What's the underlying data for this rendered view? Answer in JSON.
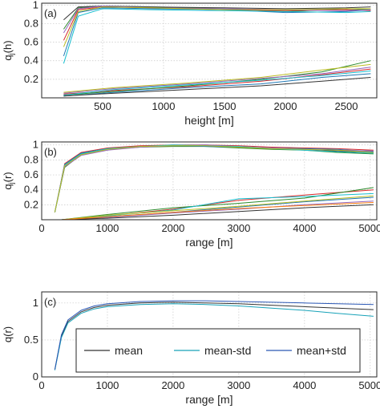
{
  "chart_data": [
    {
      "panel": "(a)",
      "type": "line",
      "xlabel": "height [m]",
      "ylabel": "q_j(h)",
      "xlim": [
        0,
        2750
      ],
      "ylim": [
        0,
        1.02
      ],
      "grid": true,
      "x_ticks": [
        "500",
        "1000",
        "1500",
        "2000",
        "2500"
      ],
      "y_ticks": [
        "0.2",
        "0.4",
        "0.6",
        "0.8",
        "1"
      ],
      "series": [
        {
          "color": "#2b8a2b",
          "x": [
            180,
            300,
            500,
            900,
            1500,
            2000,
            2500,
            2700
          ],
          "y": [
            0.74,
            0.97,
            0.99,
            0.98,
            0.96,
            0.93,
            0.96,
            0.95
          ]
        },
        {
          "color": "#d62728",
          "x": [
            180,
            300,
            500,
            900,
            1500,
            2000,
            2500,
            2700
          ],
          "y": [
            0.62,
            0.95,
            0.98,
            0.97,
            0.95,
            0.94,
            0.95,
            0.94
          ]
        },
        {
          "color": "#1f77b4",
          "x": [
            180,
            300,
            500,
            900,
            1500,
            2000,
            2500,
            2700
          ],
          "y": [
            0.45,
            0.92,
            0.97,
            0.96,
            0.95,
            0.92,
            0.93,
            0.95
          ]
        },
        {
          "color": "#17becf",
          "x": [
            180,
            300,
            500,
            900,
            1500,
            2000,
            2500,
            2700
          ],
          "y": [
            0.37,
            0.88,
            0.96,
            0.95,
            0.94,
            0.93,
            0.92,
            0.93
          ]
        },
        {
          "color": "#333333",
          "x": [
            180,
            300,
            500,
            900,
            1500,
            2000,
            2500,
            2700
          ],
          "y": [
            0.84,
            0.98,
            0.99,
            0.98,
            0.97,
            0.96,
            0.97,
            0.98
          ]
        },
        {
          "color": "#9467bd",
          "x": [
            180,
            300,
            500,
            900,
            1500,
            2000,
            2500,
            2700
          ],
          "y": [
            0.7,
            0.96,
            0.99,
            0.97,
            0.96,
            0.95,
            0.94,
            0.95
          ]
        },
        {
          "color": "#bcbd22",
          "x": [
            180,
            300,
            500,
            900,
            1500,
            2000,
            2500,
            2700
          ],
          "y": [
            0.55,
            0.93,
            0.98,
            0.97,
            0.95,
            0.95,
            0.96,
            0.96
          ]
        },
        {
          "color": "#1f77b4",
          "x": [
            180,
            600,
            1200,
            1800,
            2300,
            2700
          ],
          "y": [
            0.02,
            0.06,
            0.11,
            0.15,
            0.22,
            0.26
          ]
        },
        {
          "color": "#d62728",
          "x": [
            180,
            600,
            1200,
            1800,
            2300,
            2700
          ],
          "y": [
            0.04,
            0.08,
            0.12,
            0.18,
            0.25,
            0.31
          ]
        },
        {
          "color": "#2b8a2b",
          "x": [
            180,
            600,
            1200,
            1800,
            2300,
            2700
          ],
          "y": [
            0.03,
            0.07,
            0.13,
            0.2,
            0.28,
            0.4
          ]
        },
        {
          "color": "#9467bd",
          "x": [
            180,
            600,
            1200,
            1800,
            2300,
            2700
          ],
          "y": [
            0.05,
            0.1,
            0.15,
            0.21,
            0.26,
            0.33
          ]
        },
        {
          "color": "#17becf",
          "x": [
            180,
            600,
            1200,
            1800,
            2300,
            2700
          ],
          "y": [
            0.03,
            0.09,
            0.14,
            0.19,
            0.24,
            0.29
          ]
        },
        {
          "color": "#bcbd22",
          "x": [
            180,
            600,
            1200,
            1800,
            2300,
            2700
          ],
          "y": [
            0.06,
            0.11,
            0.16,
            0.22,
            0.3,
            0.36
          ]
        },
        {
          "color": "#333333",
          "x": [
            180,
            600,
            1200,
            1800,
            2300,
            2700
          ],
          "y": [
            0.02,
            0.05,
            0.09,
            0.13,
            0.18,
            0.22
          ]
        }
      ]
    },
    {
      "panel": "(b)",
      "type": "line",
      "xlabel": "range [m]",
      "ylabel": "q_j(r)",
      "xlim": [
        0,
        5100
      ],
      "ylim": [
        0,
        1.04
      ],
      "grid": true,
      "x_ticks": [
        "0",
        "1000",
        "2000",
        "3000",
        "4000",
        "5000"
      ],
      "y_ticks": [
        "0.2",
        "0.4",
        "0.6",
        "0.8",
        "1"
      ],
      "series": [
        {
          "color": "#333333",
          "x": [
            200,
            350,
            600,
            1000,
            1500,
            2000,
            2500,
            3000,
            3500,
            4000,
            4500,
            5050
          ],
          "y": [
            0.1,
            0.72,
            0.88,
            0.95,
            0.98,
            0.99,
            0.99,
            0.97,
            0.95,
            0.94,
            0.92,
            0.9
          ]
        },
        {
          "color": "#d62728",
          "x": [
            200,
            350,
            600,
            1000,
            1500,
            2000,
            2500,
            3000,
            3500,
            4000,
            4500,
            5050
          ],
          "y": [
            0.1,
            0.75,
            0.9,
            0.96,
            0.99,
            1.0,
            1.0,
            0.99,
            0.97,
            0.96,
            0.95,
            0.93
          ]
        },
        {
          "color": "#2b8a2b",
          "x": [
            200,
            350,
            600,
            1000,
            1500,
            2000,
            2500,
            3000,
            3500,
            4000,
            4500,
            5050
          ],
          "y": [
            0.1,
            0.7,
            0.87,
            0.94,
            0.97,
            0.98,
            0.98,
            0.96,
            0.94,
            0.93,
            0.9,
            0.88
          ]
        },
        {
          "color": "#1f77b4",
          "x": [
            200,
            350,
            600,
            1000,
            1500,
            2000,
            2500,
            3000,
            3500,
            4000,
            4500,
            5050
          ],
          "y": [
            0.1,
            0.74,
            0.89,
            0.95,
            0.98,
            0.99,
            0.98,
            0.97,
            0.96,
            0.95,
            0.94,
            0.91
          ]
        },
        {
          "color": "#9467bd",
          "x": [
            200,
            350,
            600,
            1000,
            1500,
            2000,
            2500,
            3000,
            3500,
            4000,
            4500,
            5050
          ],
          "y": [
            0.1,
            0.71,
            0.86,
            0.93,
            0.97,
            0.99,
            1.0,
            0.98,
            0.96,
            0.94,
            0.93,
            0.92
          ]
        },
        {
          "color": "#17becf",
          "x": [
            200,
            350,
            600,
            1000,
            1500,
            2000,
            2500,
            3000,
            3500,
            4000,
            4500,
            5050
          ],
          "y": [
            0.1,
            0.73,
            0.88,
            0.95,
            0.98,
            1.0,
            0.99,
            0.98,
            0.95,
            0.93,
            0.91,
            0.89
          ]
        },
        {
          "color": "#bcbd22",
          "x": [
            200,
            350,
            600,
            1000,
            1500,
            2000,
            2500,
            3000,
            3500,
            4000,
            4500,
            5050
          ],
          "y": [
            0.1,
            0.72,
            0.87,
            0.94,
            0.98,
            0.99,
            0.99,
            0.97,
            0.95,
            0.94,
            0.93,
            0.9
          ]
        },
        {
          "color": "#d62728",
          "x": [
            300,
            1000,
            2000,
            3000,
            4000,
            5050
          ],
          "y": [
            0.0,
            0.05,
            0.14,
            0.26,
            0.33,
            0.4
          ]
        },
        {
          "color": "#2b8a2b",
          "x": [
            300,
            1000,
            2000,
            3000,
            4000,
            5050
          ],
          "y": [
            0.0,
            0.07,
            0.16,
            0.22,
            0.29,
            0.43
          ]
        },
        {
          "color": "#1f77b4",
          "x": [
            300,
            1000,
            2000,
            3000,
            4000,
            5050
          ],
          "y": [
            0.0,
            0.04,
            0.1,
            0.17,
            0.24,
            0.3
          ]
        },
        {
          "color": "#9467bd",
          "x": [
            300,
            1000,
            2000,
            3000,
            4000,
            5050
          ],
          "y": [
            0.0,
            0.03,
            0.09,
            0.14,
            0.2,
            0.25
          ]
        },
        {
          "color": "#17becf",
          "x": [
            300,
            1000,
            2000,
            3000,
            4000,
            5050
          ],
          "y": [
            0.0,
            0.05,
            0.13,
            0.28,
            0.31,
            0.35
          ]
        },
        {
          "color": "#bcbd22",
          "x": [
            300,
            1000,
            2000,
            3000,
            4000,
            5050
          ],
          "y": [
            0.0,
            0.06,
            0.12,
            0.18,
            0.25,
            0.32
          ]
        },
        {
          "color": "#333333",
          "x": [
            300,
            1000,
            2000,
            3000,
            4000,
            5050
          ],
          "y": [
            0.0,
            0.02,
            0.06,
            0.11,
            0.16,
            0.2
          ]
        },
        {
          "color": "#ff7f0e",
          "x": [
            300,
            1000,
            2000,
            3000,
            4000,
            5050
          ],
          "y": [
            0.0,
            0.04,
            0.1,
            0.15,
            0.19,
            0.23
          ]
        }
      ]
    },
    {
      "panel": "(c)",
      "type": "line",
      "xlabel": "range [m]",
      "ylabel": "q(r)",
      "xlim": [
        0,
        5100
      ],
      "ylim": [
        0,
        1.15
      ],
      "grid": true,
      "x_ticks": [
        "0",
        "1000",
        "2000",
        "3000",
        "4000",
        "5000"
      ],
      "y_ticks": [
        "0",
        "0.5",
        "1"
      ],
      "legend_position": "lower-center",
      "series": [
        {
          "name": "mean",
          "color": "#333333",
          "x": [
            200,
            300,
            400,
            600,
            800,
            1000,
            1500,
            2000,
            2500,
            3000,
            3500,
            4000,
            4500,
            5050
          ],
          "y": [
            0.1,
            0.55,
            0.75,
            0.88,
            0.94,
            0.97,
            1.0,
            1.01,
            1.0,
            0.99,
            0.97,
            0.95,
            0.93,
            0.91
          ]
        },
        {
          "name": "mean-std",
          "color": "#17a2b8",
          "x": [
            200,
            300,
            400,
            600,
            800,
            1000,
            1500,
            2000,
            2500,
            3000,
            3500,
            4000,
            4500,
            5050
          ],
          "y": [
            0.09,
            0.53,
            0.73,
            0.86,
            0.92,
            0.95,
            0.98,
            0.99,
            0.98,
            0.96,
            0.93,
            0.9,
            0.86,
            0.82
          ]
        },
        {
          "name": "mean+std",
          "color": "#2a57b5",
          "x": [
            200,
            300,
            400,
            600,
            800,
            1000,
            1500,
            2000,
            2500,
            3000,
            3500,
            4000,
            4500,
            5050
          ],
          "y": [
            0.1,
            0.57,
            0.77,
            0.9,
            0.96,
            0.99,
            1.02,
            1.03,
            1.03,
            1.02,
            1.01,
            1.0,
            0.99,
            0.98
          ]
        }
      ]
    }
  ]
}
